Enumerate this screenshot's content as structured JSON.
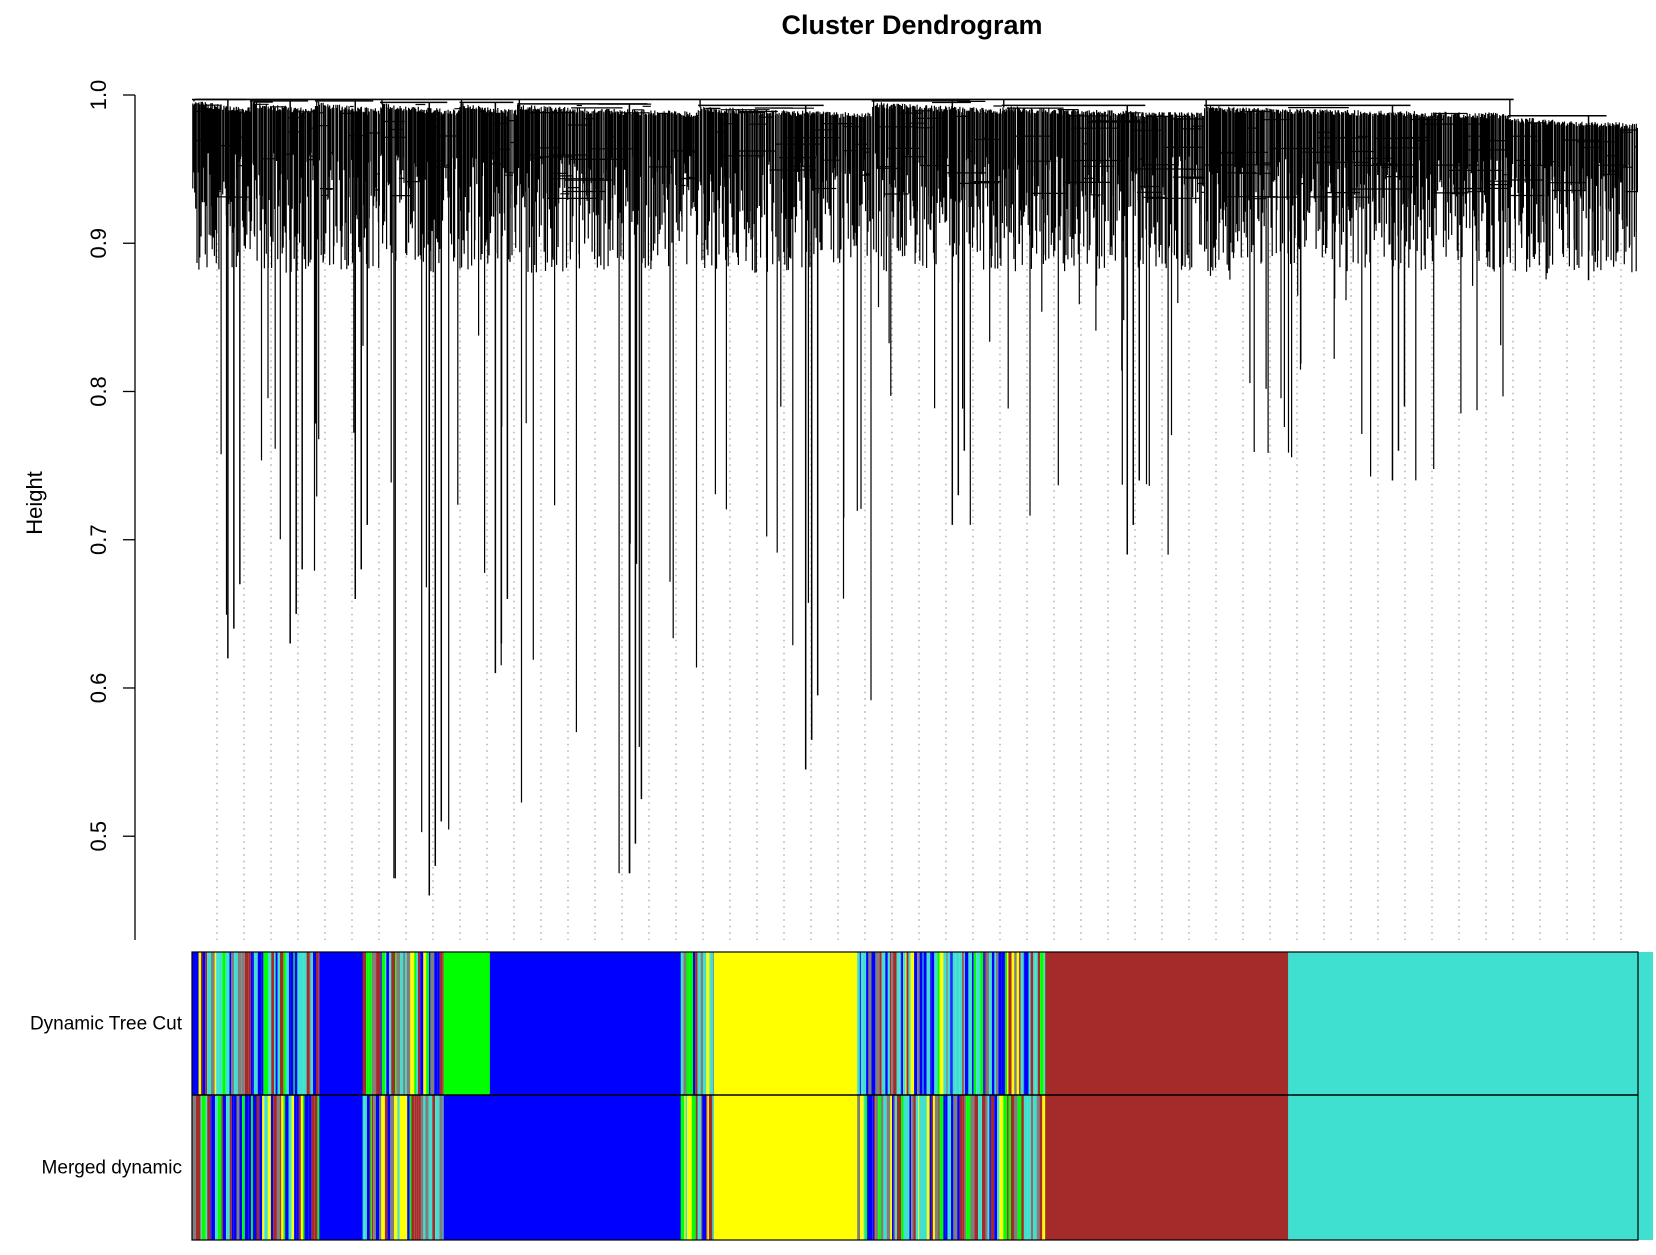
{
  "chart_data": {
    "type": "dendrogram",
    "title": "Cluster Dendrogram",
    "ylabel": "Height",
    "xlabel": "",
    "ylim": [
      0.43,
      1.0
    ],
    "y_ticks": [
      0.5,
      0.6,
      0.7,
      0.8,
      0.9,
      1.0
    ],
    "y_tick_labels": [
      "0.5",
      "0.6",
      "0.7",
      "0.8",
      "0.9",
      "1.0"
    ],
    "grid": false,
    "root_height": 0.997,
    "colors": {
      "turquoise": "#40e0d0",
      "brown": "#a52a2a",
      "yellow": "#ffff00",
      "blue": "#0000ff",
      "green": "#00ff00",
      "grey": "#7f7f7f",
      "dendrogram": "#000000"
    },
    "color_rows": [
      {
        "label": "Dynamic Tree Cut",
        "segments": [
          {
            "color": "mixed",
            "width": 0.088
          },
          {
            "color": "blue",
            "width": 0.03
          },
          {
            "color": "mixed",
            "width": 0.042
          },
          {
            "color": "mixed",
            "width": 0.014
          },
          {
            "color": "green",
            "width": 0.032
          },
          {
            "color": "blue",
            "width": 0.132
          },
          {
            "color": "mixed",
            "width": 0.023
          },
          {
            "color": "yellow",
            "width": 0.099
          },
          {
            "color": "mixed",
            "width": 0.13
          },
          {
            "color": "brown",
            "width": 0.168
          },
          {
            "color": "turquoise",
            "width": 0.252
          }
        ]
      },
      {
        "label": "Merged dynamic",
        "segments": [
          {
            "color": "mixed",
            "width": 0.088
          },
          {
            "color": "blue",
            "width": 0.03
          },
          {
            "color": "mixed",
            "width": 0.042
          },
          {
            "color": "mixed",
            "width": 0.014
          },
          {
            "color": "blue",
            "width": 0.032
          },
          {
            "color": "blue",
            "width": 0.132
          },
          {
            "color": "mixed",
            "width": 0.023
          },
          {
            "color": "yellow",
            "width": 0.099
          },
          {
            "color": "mixed",
            "width": 0.13
          },
          {
            "color": "brown",
            "width": 0.168
          },
          {
            "color": "turquoise",
            "width": 0.252
          }
        ]
      }
    ],
    "main_branches": [
      {
        "x_start": 0.0,
        "x_end": 0.04,
        "merge_height": 0.997,
        "min_height": 0.62
      },
      {
        "x_start": 0.04,
        "x_end": 0.085,
        "merge_height": 0.996,
        "min_height": 0.63
      },
      {
        "x_start": 0.085,
        "x_end": 0.13,
        "merge_height": 0.996,
        "min_height": 0.66
      },
      {
        "x_start": 0.13,
        "x_end": 0.185,
        "merge_height": 0.995,
        "min_height": 0.46
      },
      {
        "x_start": 0.185,
        "x_end": 0.225,
        "merge_height": 0.995,
        "min_height": 0.61
      },
      {
        "x_start": 0.225,
        "x_end": 0.35,
        "merge_height": 0.994,
        "min_height": 0.475
      },
      {
        "x_start": 0.35,
        "x_end": 0.47,
        "merge_height": 0.993,
        "min_height": 0.545
      },
      {
        "x_start": 0.47,
        "x_end": 0.56,
        "merge_height": 0.996,
        "min_height": 0.71
      },
      {
        "x_start": 0.56,
        "x_end": 0.7,
        "merge_height": 0.993,
        "min_height": 0.69
      },
      {
        "x_start": 0.7,
        "x_end": 0.91,
        "merge_height": 0.993,
        "min_height": 0.74
      },
      {
        "x_start": 0.91,
        "x_end": 1.0,
        "merge_height": 0.986,
        "min_height": 0.875
      }
    ]
  }
}
